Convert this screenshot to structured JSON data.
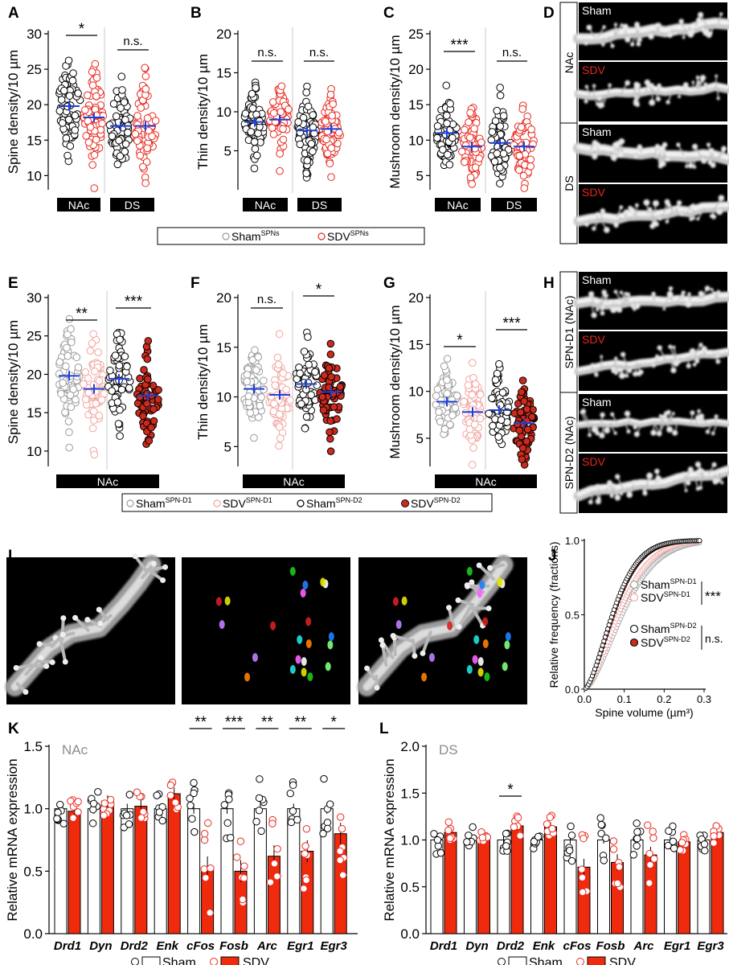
{
  "colors": {
    "sham": "#000000",
    "sdv": "#e8281e",
    "sham_d1": "#9a9a9a",
    "sdv_d1": "#f2a39d",
    "sdv_fill": "#cc2a1c",
    "bar_red": "#f02a0c",
    "mean_line": "#1f3fd6",
    "grey_text": "#8c8c8c"
  },
  "panel_letters": {
    "A": "A",
    "B": "B",
    "C": "C",
    "D": "D",
    "E": "E",
    "F": "F",
    "G": "G",
    "H": "H",
    "I": "I",
    "J": "J",
    "K": "K",
    "L": "L"
  },
  "scatter_legend_1": {
    "sham": "Sham",
    "sham_sup": "SPNs",
    "sdv": "SDV",
    "sdv_sup": "SPNs"
  },
  "scatter_legend_2": {
    "sham_d1": "Sham",
    "sham_d1_sup": "SPN-D1",
    "sdv_d1": "SDV",
    "sdv_d1_sup": "SPN-D1",
    "sham_d2": "Sham",
    "sham_d2_sup": "SPN-D2",
    "sdv_d2": "SDV",
    "sdv_d2_sup": "SPN-D2"
  },
  "image_labels": {
    "D_nac": "NAc",
    "D_ds": "DS",
    "H_d1": "SPN-D1 (NAc)",
    "H_d2": "SPN-D2 (NAc)",
    "sham": "Sham",
    "sdv": "SDV"
  },
  "chart_data": [
    {
      "panel": "A",
      "type": "scatter",
      "ylabel": "Spine density/10 µm",
      "ylim": [
        8,
        30
      ],
      "yticks": [
        10,
        15,
        20,
        25,
        30
      ],
      "groups": [
        {
          "region": "NAc",
          "series": [
            {
              "name": "Sham",
              "mean": 19.8
            },
            {
              "name": "SDV",
              "mean": 18.2
            }
          ],
          "sig": "*"
        },
        {
          "region": "DS",
          "series": [
            {
              "name": "Sham",
              "mean": 17.0
            },
            {
              "name": "SDV",
              "mean": 17.0
            }
          ],
          "sig": "n.s."
        }
      ]
    },
    {
      "panel": "B",
      "type": "scatter",
      "ylabel": "Thin density/10 µm",
      "ylim": [
        0,
        20
      ],
      "yticks": [
        5,
        10,
        15,
        20
      ],
      "groups": [
        {
          "region": "NAc",
          "series": [
            {
              "name": "Sham",
              "mean": 8.7
            },
            {
              "name": "SDV",
              "mean": 9.0
            }
          ],
          "sig": "n.s."
        },
        {
          "region": "DS",
          "series": [
            {
              "name": "Sham",
              "mean": 7.6
            },
            {
              "name": "SDV",
              "mean": 7.8
            }
          ],
          "sig": "n.s."
        }
      ]
    },
    {
      "panel": "C",
      "type": "scatter",
      "ylabel": "Mushroom density/10 µm",
      "ylim": [
        3,
        25
      ],
      "yticks": [
        5,
        10,
        15,
        20,
        25
      ],
      "groups": [
        {
          "region": "NAc",
          "series": [
            {
              "name": "Sham",
              "mean": 11.0
            },
            {
              "name": "SDV",
              "mean": 9.1
            }
          ],
          "sig": "***"
        },
        {
          "region": "DS",
          "series": [
            {
              "name": "Sham",
              "mean": 9.6
            },
            {
              "name": "SDV",
              "mean": 9.1
            }
          ],
          "sig": "n.s."
        }
      ]
    },
    {
      "panel": "E",
      "type": "scatter",
      "ylabel": "Spine density/10 µm",
      "ylim": [
        8,
        30
      ],
      "yticks": [
        10,
        15,
        20,
        25,
        30
      ],
      "region": "NAc",
      "groups": [
        {
          "series": [
            {
              "name": "Sham SPN-D1",
              "mean": 19.8
            },
            {
              "name": "SDV SPN-D1",
              "mean": 18.1
            }
          ],
          "sig": "**"
        },
        {
          "series": [
            {
              "name": "Sham SPN-D2",
              "mean": 19.4
            },
            {
              "name": "SDV SPN-D2",
              "mean": 17.2
            }
          ],
          "sig": "***"
        }
      ]
    },
    {
      "panel": "F",
      "type": "scatter",
      "ylabel": "Thin density/10 µm",
      "ylim": [
        3,
        20
      ],
      "yticks": [
        5,
        10,
        15,
        20
      ],
      "region": "NAc",
      "groups": [
        {
          "series": [
            {
              "name": "Sham SPN-D1",
              "mean": 10.8
            },
            {
              "name": "SDV SPN-D1",
              "mean": 10.2
            }
          ],
          "sig": "n.s."
        },
        {
          "series": [
            {
              "name": "Sham SPN-D2",
              "mean": 11.3
            },
            {
              "name": "SDV SPN-D2",
              "mean": 10.5
            }
          ],
          "sig": "*"
        }
      ]
    },
    {
      "panel": "G",
      "type": "scatter",
      "ylabel": "Mushroom density/10 µm",
      "ylim": [
        2,
        20
      ],
      "yticks": [
        5,
        10,
        15,
        20
      ],
      "region": "NAc",
      "groups": [
        {
          "series": [
            {
              "name": "Sham SPN-D1",
              "mean": 8.9
            },
            {
              "name": "SDV SPN-D1",
              "mean": 7.8
            }
          ],
          "sig": "*"
        },
        {
          "series": [
            {
              "name": "Sham SPN-D2",
              "mean": 8.0
            },
            {
              "name": "SDV SPN-D2",
              "mean": 6.6
            }
          ],
          "sig": "***"
        }
      ]
    },
    {
      "panel": "J",
      "type": "line",
      "ylabel": "Relative frequency (fractions)",
      "xlabel": "Spine volume (µm³)",
      "xlim": [
        0,
        0.3
      ],
      "ylim": [
        0,
        1
      ],
      "xticks": [
        "0.0",
        "0.1",
        "0.2",
        "0.3"
      ],
      "yticks": [
        "0.0",
        "0.5",
        "1.0"
      ],
      "series": [
        {
          "name": "Sham SPN-D1",
          "median": 0.095
        },
        {
          "name": "SDV SPN-D1",
          "median": 0.085
        },
        {
          "name": "Sham SPN-D2",
          "median": 0.07
        },
        {
          "name": "SDV SPN-D2",
          "median": 0.072
        }
      ],
      "sig": [
        {
          "label": "***"
        },
        {
          "label": "n.s."
        }
      ],
      "legend": {
        "a": "Sham",
        "a_sup": "SPN-D1",
        "b": "SDV",
        "b_sup": "SPN-D1",
        "c": "Sham",
        "c_sup": "SPN-D2",
        "d": "SDV",
        "d_sup": "SPN-D2"
      }
    },
    {
      "panel": "K",
      "type": "bar",
      "title": "NAc",
      "ylabel": "Relative mRNA expression",
      "ylim": [
        0,
        1.5
      ],
      "yticks": [
        "0.0",
        "0.5",
        "1.0",
        "1.5"
      ],
      "categories": [
        "Drd1",
        "Dyn",
        "Drd2",
        "Enk",
        "cFos",
        "Fosb",
        "Arc",
        "Egr1",
        "Egr3"
      ],
      "series": [
        {
          "name": "Sham",
          "values": [
            1.0,
            1.0,
            1.0,
            1.0,
            1.0,
            1.0,
            1.0,
            1.0,
            1.0
          ]
        },
        {
          "name": "SDV",
          "values": [
            0.98,
            1.06,
            1.02,
            1.12,
            0.53,
            0.5,
            0.62,
            0.66,
            0.8
          ]
        }
      ],
      "sig": [
        "",
        "",
        "",
        "",
        "**",
        "***",
        "**",
        "**",
        "*"
      ],
      "legend": {
        "sham": "Sham",
        "sdv": "SDV"
      }
    },
    {
      "panel": "L",
      "type": "bar",
      "title": "DS",
      "ylabel": "Relative mRNA expression",
      "ylim": [
        0,
        2.0
      ],
      "yticks": [
        "0.0",
        "0.5",
        "1.0",
        "1.5",
        "2.0"
      ],
      "categories": [
        "Drd1",
        "Dyn",
        "Drd2",
        "Enk",
        "cFos",
        "Fosb",
        "Arc",
        "Egr1",
        "Egr3"
      ],
      "series": [
        {
          "name": "Sham",
          "values": [
            1.0,
            1.0,
            1.0,
            1.0,
            1.0,
            1.0,
            1.0,
            1.0,
            1.0
          ]
        },
        {
          "name": "SDV",
          "values": [
            1.08,
            1.02,
            1.15,
            1.14,
            0.71,
            0.76,
            0.84,
            0.98,
            1.08
          ]
        }
      ],
      "sig": [
        "",
        "",
        "*",
        "",
        "",
        "",
        "",
        "",
        ""
      ],
      "legend": {
        "sham": "Sham",
        "sdv": "SDV"
      }
    }
  ]
}
